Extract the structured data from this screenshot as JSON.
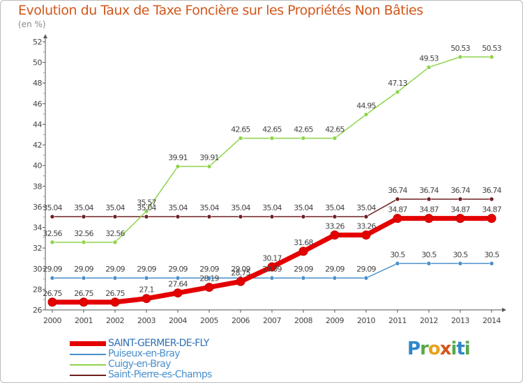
{
  "title": "Evolution du Taux de Taxe Foncière sur les Propriétés Non Bâties",
  "unit_label": "(en %)",
  "logo": "Proxiti",
  "chart_data": {
    "type": "line",
    "x": [
      "2000",
      "2001",
      "2002",
      "2003",
      "2004",
      "2005",
      "2006",
      "2007",
      "2008",
      "2009",
      "2010",
      "2011",
      "2012",
      "2013",
      "2014"
    ],
    "ylim": [
      26,
      52
    ],
    "yticks": [
      "26",
      "28",
      "30",
      "32",
      "34",
      "36",
      "38",
      "40",
      "42",
      "44",
      "46",
      "48",
      "50",
      "52"
    ],
    "grid": false,
    "legend_position": "bottom-left",
    "series": [
      {
        "name": "SAINT-GERMER-DE-FLY",
        "color": "#e50000",
        "emphasis": true,
        "values": [
          26.75,
          26.75,
          26.75,
          27.1,
          27.64,
          28.19,
          28.75,
          30.17,
          31.68,
          33.26,
          33.26,
          34.87,
          34.87,
          34.87,
          34.87
        ],
        "labels": [
          "26.75",
          "26.75",
          "26.75",
          "27.1",
          "27.64",
          "28.19",
          "28.75",
          "30.17",
          "31.68",
          "33.26",
          "33.26",
          "34.87",
          "34.87",
          "34.87",
          "34.87"
        ]
      },
      {
        "name": "Puiseux-en-Bray",
        "color": "#4a8fcb",
        "values": [
          29.09,
          29.09,
          29.09,
          29.09,
          29.09,
          29.09,
          29.09,
          29.09,
          29.09,
          29.09,
          29.09,
          30.5,
          30.5,
          30.5,
          30.5
        ],
        "labels": [
          "29.09",
          "29.09",
          "29.09",
          "29.09",
          "29.09",
          "29.09",
          "29.09",
          "29.09",
          "29.09",
          "29.09",
          "29.09",
          "30.5",
          "30.5",
          "30.5",
          "30.5"
        ]
      },
      {
        "name": "Cuigy-en-Bray",
        "color": "#8fd44b",
        "values": [
          32.56,
          32.56,
          32.56,
          35.57,
          39.91,
          39.91,
          42.65,
          42.65,
          42.65,
          42.65,
          44.95,
          47.13,
          49.53,
          50.53,
          50.53
        ],
        "labels": [
          "32.56",
          "32.56",
          "32.56",
          "35.57",
          "39.91",
          "39.91",
          "42.65",
          "42.65",
          "42.65",
          "42.65",
          "44.95",
          "47.13",
          "49.53",
          "50.53",
          "50.53"
        ]
      },
      {
        "name": "Saint-Pierre-es-Champs",
        "color": "#6e1f1f",
        "values": [
          35.04,
          35.04,
          35.04,
          35.04,
          35.04,
          35.04,
          35.04,
          35.04,
          35.04,
          35.04,
          35.04,
          36.74,
          36.74,
          36.74,
          36.74
        ],
        "labels": [
          "35.04",
          "35.04",
          "35.04",
          "35.04",
          "35.04",
          "35.04",
          "35.04",
          "35.04",
          "35.04",
          "35.04",
          "35.04",
          "36.74",
          "36.74",
          "36.74",
          "36.74"
        ]
      }
    ]
  }
}
